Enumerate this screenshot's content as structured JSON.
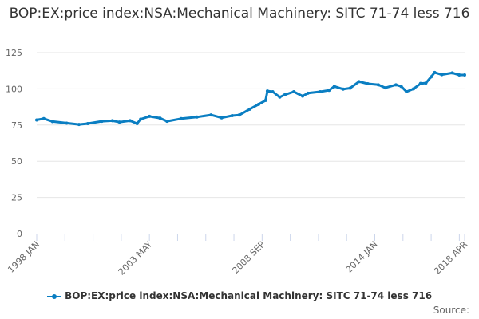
{
  "chart_data": {
    "type": "line",
    "title": "BOP:EX:price index:NSA:Mechanical Machinery: SITC 71-74 less 716",
    "xlabel": "",
    "ylabel": "",
    "ylim": [
      0,
      125
    ],
    "yticks": [
      "0",
      "25",
      "50",
      "75",
      "100",
      "125"
    ],
    "xlim": [
      "1998-01",
      "2018-04"
    ],
    "xtick_labels": [
      {
        "date": "1998-01",
        "label": "1998 JAN"
      },
      {
        "date": "2003-05",
        "label": "2003 MAY"
      },
      {
        "date": "2008-09",
        "label": "2008 SEP"
      },
      {
        "date": "2014-01",
        "label": "2014 JAN"
      },
      {
        "date": "2018-04",
        "label": "2018 APR"
      }
    ],
    "grid": true,
    "legend_position": "bottom",
    "color": "#0a7ec2",
    "series": [
      {
        "name": "BOP:EX:price index:NSA:Mechanical Machinery: SITC 71-74 less 716",
        "points": [
          [
            "1998-01",
            78.5
          ],
          [
            "1998-05",
            79.4
          ],
          [
            "1998-10",
            77.4
          ],
          [
            "1999-06",
            76.3
          ],
          [
            "2000-01",
            75.4
          ],
          [
            "2000-06",
            76
          ],
          [
            "2001-02",
            77.6
          ],
          [
            "2001-08",
            78
          ],
          [
            "2001-12",
            77
          ],
          [
            "2002-06",
            78
          ],
          [
            "2002-10",
            76
          ],
          [
            "2002-12",
            79
          ],
          [
            "2003-05",
            81
          ],
          [
            "2003-11",
            79.8
          ],
          [
            "2004-03",
            77.6
          ],
          [
            "2004-11",
            79.4
          ],
          [
            "2005-08",
            80.5
          ],
          [
            "2006-04",
            82
          ],
          [
            "2006-10",
            80
          ],
          [
            "2007-04",
            81.5
          ],
          [
            "2007-08",
            81.9
          ],
          [
            "2008-02",
            86
          ],
          [
            "2008-07",
            89.3
          ],
          [
            "2008-11",
            92
          ],
          [
            "2008-12",
            98.5
          ],
          [
            "2009-03",
            98
          ],
          [
            "2009-07",
            94.3
          ],
          [
            "2009-10",
            96
          ],
          [
            "2010-03",
            98
          ],
          [
            "2010-08",
            95
          ],
          [
            "2010-11",
            97
          ],
          [
            "2011-06",
            98
          ],
          [
            "2011-11",
            99
          ],
          [
            "2012-02",
            101.7
          ],
          [
            "2012-07",
            99.8
          ],
          [
            "2012-11",
            100.5
          ],
          [
            "2013-04",
            105
          ],
          [
            "2013-09",
            103.5
          ],
          [
            "2014-03",
            102.8
          ],
          [
            "2014-07",
            100.7
          ],
          [
            "2015-01",
            102.8
          ],
          [
            "2015-04",
            101.7
          ],
          [
            "2015-07",
            98
          ],
          [
            "2015-11",
            100
          ],
          [
            "2016-03",
            103.7
          ],
          [
            "2016-06",
            104
          ],
          [
            "2016-09",
            108.3
          ],
          [
            "2016-11",
            111.3
          ],
          [
            "2017-03",
            109.8
          ],
          [
            "2017-09",
            111
          ],
          [
            "2018-01",
            109.6
          ],
          [
            "2018-04",
            109.6
          ]
        ]
      }
    ]
  },
  "source_label": "Source:"
}
